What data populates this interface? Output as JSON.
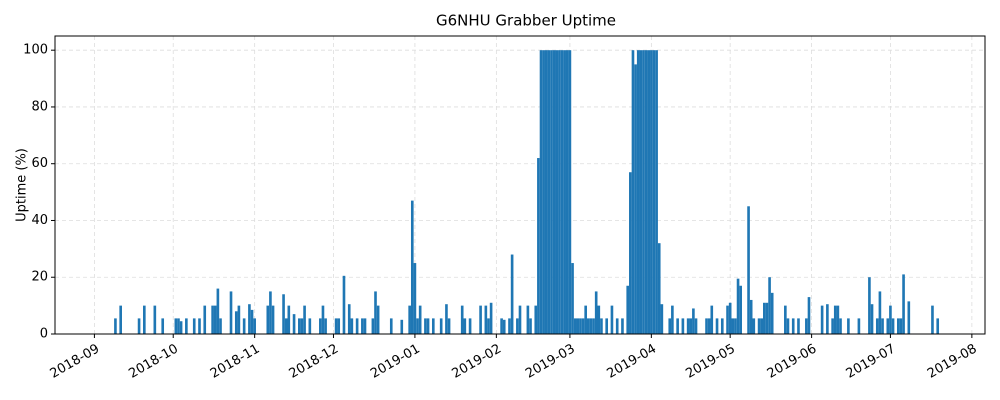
{
  "chart_data": {
    "type": "bar",
    "title": "G6NHU Grabber Uptime",
    "y_label": "Uptime (%)",
    "color": "#1f77b4",
    "grid": true,
    "xlim": [
      -15,
      339
    ],
    "ylim": [
      0,
      105
    ],
    "xticks": [
      {
        "value": 0,
        "label": "2018-09"
      },
      {
        "value": 30,
        "label": "2018-10"
      },
      {
        "value": 61,
        "label": "2018-11"
      },
      {
        "value": 91,
        "label": "2018-12"
      },
      {
        "value": 122,
        "label": "2019-01"
      },
      {
        "value": 153,
        "label": "2019-02"
      },
      {
        "value": 181,
        "label": "2019-03"
      },
      {
        "value": 212,
        "label": "2019-04"
      },
      {
        "value": 242,
        "label": "2019-05"
      },
      {
        "value": 273,
        "label": "2019-06"
      },
      {
        "value": 303,
        "label": "2019-07"
      },
      {
        "value": 334,
        "label": "2019-08"
      }
    ],
    "yticks": [
      0,
      20,
      40,
      60,
      80,
      100
    ],
    "x": [
      8,
      10,
      17,
      19,
      23,
      26,
      31,
      32,
      33,
      35,
      38,
      40,
      42,
      45,
      46,
      47,
      48,
      52,
      54,
      55,
      57,
      59,
      60,
      61,
      66,
      67,
      68,
      72,
      73,
      74,
      76,
      78,
      79,
      80,
      82,
      86,
      87,
      88,
      92,
      93,
      95,
      97,
      98,
      100,
      102,
      103,
      106,
      107,
      108,
      113,
      117,
      120,
      121,
      122,
      123,
      124,
      126,
      127,
      129,
      132,
      134,
      135,
      140,
      141,
      143,
      147,
      149,
      150,
      151,
      155,
      156,
      158,
      159,
      161,
      162,
      165,
      166,
      168,
      169,
      170,
      171,
      172,
      173,
      174,
      175,
      176,
      177,
      178,
      179,
      180,
      181,
      182,
      183,
      184,
      185,
      186,
      187,
      188,
      189,
      190,
      191,
      192,
      193,
      195,
      197,
      199,
      201,
      203,
      204,
      205,
      206,
      207,
      208,
      209,
      210,
      211,
      212,
      213,
      214,
      215,
      216,
      219,
      220,
      222,
      224,
      226,
      227,
      228,
      229,
      233,
      234,
      235,
      237,
      239,
      241,
      242,
      243,
      244,
      245,
      246,
      249,
      250,
      251,
      253,
      254,
      255,
      256,
      257,
      258,
      263,
      264,
      266,
      268,
      271,
      272,
      277,
      279,
      281,
      282,
      283,
      284,
      287,
      291,
      295,
      296,
      298,
      299,
      300,
      302,
      303,
      304,
      306,
      307,
      308,
      310,
      319,
      321
    ],
    "values": [
      5.5,
      10,
      5.5,
      10,
      10,
      5.5,
      5.5,
      5.5,
      4.5,
      5.5,
      5.5,
      5.5,
      10,
      10,
      10,
      16,
      5.5,
      15,
      8,
      10,
      5.5,
      10.5,
      8.5,
      5.5,
      10,
      15,
      10,
      14,
      5.5,
      10,
      7,
      5.5,
      5.5,
      10,
      5.5,
      5.5,
      10,
      5.5,
      5.5,
      5.5,
      20.5,
      10.5,
      5.5,
      5.5,
      5.5,
      5.5,
      5.5,
      15,
      10,
      5.5,
      5,
      10,
      47,
      25,
      5.5,
      10,
      5.5,
      5.5,
      5.5,
      5.5,
      10.5,
      5.5,
      10,
      5.5,
      5.5,
      10,
      10,
      5.5,
      11,
      5.5,
      5,
      5.5,
      28,
      5.5,
      10,
      10,
      5.5,
      10,
      62,
      100,
      100,
      100,
      100,
      100,
      100,
      100,
      100,
      100,
      100,
      100,
      100,
      25,
      5.5,
      5.5,
      5.5,
      5.5,
      10,
      5.5,
      5.5,
      5.5,
      15,
      10,
      5.5,
      5.5,
      10,
      5.5,
      5.5,
      17,
      57,
      100,
      95,
      100,
      100,
      100,
      100,
      100,
      100,
      100,
      100,
      32,
      10.5,
      5.5,
      10,
      5.5,
      5.5,
      5.5,
      5.5,
      9,
      5.5,
      5.5,
      5.5,
      10,
      5.5,
      5.5,
      10,
      11,
      5.5,
      5.5,
      19.5,
      17,
      45,
      12,
      5.5,
      5.5,
      5.5,
      11,
      11,
      20,
      14.5,
      10,
      5.5,
      5.5,
      5.5,
      5.5,
      13,
      10,
      10.5,
      5.5,
      10,
      10,
      5.5,
      5.5,
      5.5,
      20,
      10.5,
      5.5,
      15,
      5.5,
      5.5,
      10,
      5.5,
      5.5,
      5.5,
      21,
      11.5,
      10,
      5.5
    ]
  }
}
